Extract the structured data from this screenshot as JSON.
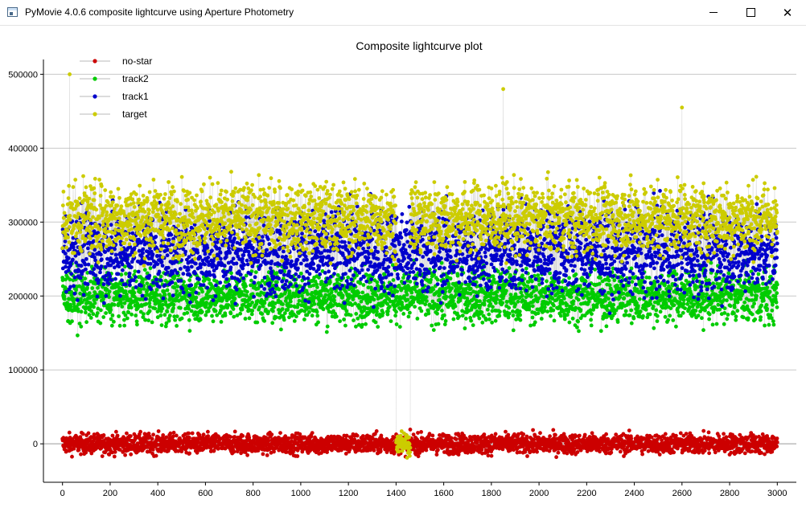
{
  "window": {
    "title": "PyMovie 4.0.6 composite lightcurve using Aperture Photometry",
    "icons": [
      "app-icon",
      "minimize-icon",
      "maximize-icon",
      "close-icon"
    ]
  },
  "chart_data": {
    "type": "scatter",
    "title": "Composite lightcurve plot",
    "xlabel": "",
    "ylabel": "",
    "xlim": [
      -80,
      3080
    ],
    "ylim": [
      -52000,
      520000
    ],
    "xticks": [
      0,
      200,
      400,
      600,
      800,
      1000,
      1200,
      1400,
      1600,
      1800,
      2000,
      2200,
      2400,
      2600,
      2800,
      3000
    ],
    "yticks": [
      0,
      100000,
      200000,
      300000,
      400000,
      500000
    ],
    "grid": "horizontal",
    "legend_position": "top-left",
    "points_per_series": 3000,
    "series": [
      {
        "name": "no-star",
        "color": "#cc0000",
        "typical_value": 0,
        "spread": 12000,
        "note_values": [
          [
            180,
            0
          ],
          [
            560,
            5000
          ],
          [
            1000,
            -3000
          ],
          [
            1450,
            2000
          ],
          [
            2200,
            -1000
          ],
          [
            2950,
            4000
          ]
        ]
      },
      {
        "name": "track2",
        "color": "#00cc00",
        "typical_value": 200000,
        "spread": 32000,
        "note_values": [
          [
            100,
            190000
          ],
          [
            600,
            185000
          ],
          [
            1200,
            175000
          ],
          [
            1550,
            160000
          ],
          [
            2100,
            190000
          ],
          [
            2700,
            195000
          ]
        ]
      },
      {
        "name": "track1",
        "color": "#0000cc",
        "typical_value": 260000,
        "spread": 50000,
        "note_values": [
          [
            100,
            250000
          ],
          [
            700,
            260000
          ],
          [
            1300,
            240000
          ],
          [
            1800,
            255000
          ],
          [
            2400,
            265000
          ],
          [
            2900,
            260000
          ]
        ]
      },
      {
        "name": "target",
        "color": "#cccc00",
        "typical_value": 305000,
        "spread": 42000,
        "drop": {
          "start": 1400,
          "end": 1460,
          "value": 0,
          "spread": 14000
        },
        "note_values": [
          [
            30,
            500000
          ],
          [
            1000,
            300000
          ],
          [
            1420,
            0
          ],
          [
            1850,
            480000
          ],
          [
            2600,
            455000
          ],
          [
            2950,
            310000
          ]
        ]
      }
    ],
    "connector_color": "#b8b8b8"
  }
}
